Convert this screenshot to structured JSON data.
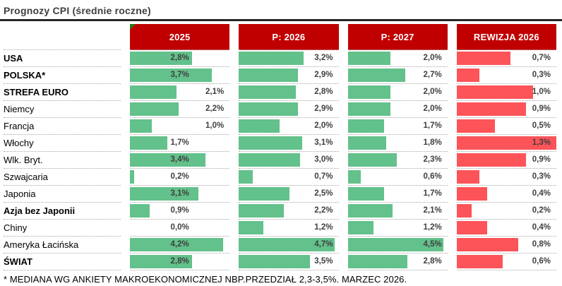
{
  "title": "Prognozy CPI (średnie roczne)",
  "footnote": "* MEDIANA WG ANKIETY MAKROEKONOMICZNEJ NBP.PRZEDZIAŁ 2,3-3,5%. MARZEC 2026.",
  "colors": {
    "header_bg": "#C00000",
    "header_text": "#FFFFFF",
    "green_bar": "#63C18B",
    "red_bar": "#FC5458",
    "title_text": "#3F3F3F",
    "value_text": "#3F3F3F",
    "separator_dotted": "#A6A6A6",
    "title_rule": "#262626",
    "corner_marker": "#1E7D1E"
  },
  "columns": [
    {
      "id": "y2025",
      "label": "2025",
      "bar_color": "green",
      "bar_max": 4.5,
      "corner_marker": true
    },
    {
      "id": "p2026",
      "label": "P: 2026",
      "bar_color": "green",
      "bar_max": 4.9,
      "corner_marker": false
    },
    {
      "id": "p2027",
      "label": "P: 2027",
      "bar_color": "green",
      "bar_max": 4.7,
      "corner_marker": false
    },
    {
      "id": "rev2026",
      "label": "REWIZJA 2026",
      "bar_color": "red",
      "bar_max": 1.3,
      "corner_marker": false
    }
  ],
  "rows": [
    {
      "label": "USA",
      "bold": true,
      "cells": [
        {
          "display": "2,8%",
          "value": 2.8,
          "align": "center"
        },
        {
          "display": "3,2%",
          "value": 3.2,
          "align": "right"
        },
        {
          "display": "2,0%",
          "value": 2.0,
          "align": "right"
        },
        {
          "display": "0,7%",
          "value": 0.7,
          "align": "right"
        }
      ]
    },
    {
      "label": "POLSKA*",
      "bold": true,
      "cells": [
        {
          "display": "3,7%",
          "value": 3.7,
          "align": "center"
        },
        {
          "display": "2,9%",
          "value": 2.9,
          "align": "right"
        },
        {
          "display": "2,7%",
          "value": 2.7,
          "align": "right"
        },
        {
          "display": "0,3%",
          "value": 0.3,
          "align": "right"
        }
      ]
    },
    {
      "label": "STREFA EURO",
      "bold": true,
      "cells": [
        {
          "display": "2,1%",
          "value": 2.1,
          "align": "right"
        },
        {
          "display": "2,8%",
          "value": 2.8,
          "align": "right"
        },
        {
          "display": "2,0%",
          "value": 2.0,
          "align": "right"
        },
        {
          "display": "1,0%",
          "value": 1.0,
          "align": "right"
        }
      ]
    },
    {
      "label": "Niemcy",
      "bold": false,
      "cells": [
        {
          "display": "2,2%",
          "value": 2.2,
          "align": "right"
        },
        {
          "display": "2,9%",
          "value": 2.9,
          "align": "right"
        },
        {
          "display": "2,0%",
          "value": 2.0,
          "align": "right"
        },
        {
          "display": "0,9%",
          "value": 0.9,
          "align": "right"
        }
      ]
    },
    {
      "label": "Francja",
      "bold": false,
      "cells": [
        {
          "display": "1,0%",
          "value": 1.0,
          "align": "right"
        },
        {
          "display": "2,0%",
          "value": 2.0,
          "align": "right"
        },
        {
          "display": "1,7%",
          "value": 1.7,
          "align": "right"
        },
        {
          "display": "0,5%",
          "value": 0.5,
          "align": "right"
        }
      ]
    },
    {
      "label": "Włochy",
      "bold": false,
      "cells": [
        {
          "display": "1,7%",
          "value": 1.7,
          "align": "center"
        },
        {
          "display": "3,1%",
          "value": 3.1,
          "align": "right"
        },
        {
          "display": "1,8%",
          "value": 1.8,
          "align": "right"
        },
        {
          "display": "1,3%",
          "value": 1.3,
          "align": "right"
        }
      ]
    },
    {
      "label": "Wlk. Bryt.",
      "bold": false,
      "cells": [
        {
          "display": "3,4%",
          "value": 3.4,
          "align": "center"
        },
        {
          "display": "3,0%",
          "value": 3.0,
          "align": "right"
        },
        {
          "display": "2,3%",
          "value": 2.3,
          "align": "right"
        },
        {
          "display": "0,9%",
          "value": 0.9,
          "align": "right"
        }
      ]
    },
    {
      "label": "Szwajcaria",
      "bold": false,
      "cells": [
        {
          "display": "0,2%",
          "value": 0.2,
          "align": "center"
        },
        {
          "display": "0,7%",
          "value": 0.7,
          "align": "right"
        },
        {
          "display": "0,6%",
          "value": 0.6,
          "align": "right"
        },
        {
          "display": "0,3%",
          "value": 0.3,
          "align": "right"
        }
      ]
    },
    {
      "label": "Japonia",
      "bold": false,
      "cells": [
        {
          "display": "3,1%",
          "value": 3.1,
          "align": "center"
        },
        {
          "display": "2,5%",
          "value": 2.5,
          "align": "right"
        },
        {
          "display": "1,7%",
          "value": 1.7,
          "align": "right"
        },
        {
          "display": "0,4%",
          "value": 0.4,
          "align": "right"
        }
      ]
    },
    {
      "label": "Azja bez Japonii",
      "bold": true,
      "cells": [
        {
          "display": "0,9%",
          "value": 0.9,
          "align": "center"
        },
        {
          "display": "2,2%",
          "value": 2.2,
          "align": "right"
        },
        {
          "display": "2,1%",
          "value": 2.1,
          "align": "right"
        },
        {
          "display": "0,2%",
          "value": 0.2,
          "align": "right"
        }
      ]
    },
    {
      "label": "Chiny",
      "bold": false,
      "cells": [
        {
          "display": "0,0%",
          "value": 0.0,
          "align": "center"
        },
        {
          "display": "1,2%",
          "value": 1.2,
          "align": "right"
        },
        {
          "display": "1,2%",
          "value": 1.2,
          "align": "right"
        },
        {
          "display": "0,4%",
          "value": 0.4,
          "align": "right"
        }
      ]
    },
    {
      "label": "Ameryka Łacińska",
      "bold": false,
      "cells": [
        {
          "display": "4,2%",
          "value": 4.2,
          "align": "center"
        },
        {
          "display": "4,7%",
          "value": 4.7,
          "align": "right"
        },
        {
          "display": "4,5%",
          "value": 4.5,
          "align": "right"
        },
        {
          "display": "0,8%",
          "value": 0.8,
          "align": "right"
        }
      ]
    },
    {
      "label": "ŚWIAT",
      "bold": true,
      "cells": [
        {
          "display": "2,8%",
          "value": 2.8,
          "align": "center"
        },
        {
          "display": "3,5%",
          "value": 3.5,
          "align": "right"
        },
        {
          "display": "2,8%",
          "value": 2.8,
          "align": "right"
        },
        {
          "display": "0,6%",
          "value": 0.6,
          "align": "right"
        }
      ]
    }
  ],
  "chart_data": {
    "type": "bar",
    "orientation": "horizontal",
    "title": "Prognozy CPI (średnie roczne)",
    "categories": [
      "USA",
      "POLSKA*",
      "STREFA EURO",
      "Niemcy",
      "Francja",
      "Włochy",
      "Wlk. Bryt.",
      "Szwajcaria",
      "Japonia",
      "Azja bez Japonii",
      "Chiny",
      "Ameryka Łacińska",
      "ŚWIAT"
    ],
    "series": [
      {
        "name": "2025",
        "color": "#63C18B",
        "values": [
          2.8,
          3.7,
          2.1,
          2.2,
          1.0,
          1.7,
          3.4,
          0.2,
          3.1,
          0.9,
          0.0,
          4.2,
          2.8
        ]
      },
      {
        "name": "P: 2026",
        "color": "#63C18B",
        "values": [
          3.2,
          2.9,
          2.8,
          2.9,
          2.0,
          3.1,
          3.0,
          0.7,
          2.5,
          2.2,
          1.2,
          4.7,
          3.5
        ]
      },
      {
        "name": "P: 2027",
        "color": "#63C18B",
        "values": [
          2.0,
          2.7,
          2.0,
          2.0,
          1.7,
          1.8,
          2.3,
          0.6,
          1.7,
          2.1,
          1.2,
          4.5,
          2.8
        ]
      },
      {
        "name": "REWIZJA 2026",
        "color": "#FC5458",
        "values": [
          0.7,
          0.3,
          1.0,
          0.9,
          0.5,
          1.3,
          0.9,
          0.3,
          0.4,
          0.2,
          0.4,
          0.8,
          0.6
        ]
      }
    ],
    "value_suffix": "%",
    "decimal_separator": ",",
    "xlim_per_series": {
      "2025": [
        0,
        4.5
      ],
      "P: 2026": [
        0,
        4.9
      ],
      "P: 2027": [
        0,
        4.7
      ],
      "REWIZJA 2026": [
        0,
        1.3
      ]
    },
    "grid": "dotted row separators",
    "legend_position": "column headers",
    "footnote": "* MEDIANA WG ANKIETY MAKROEKONOMICZNEJ NBP.PRZEDZIAŁ 2,3-3,5%. MARZEC 2026."
  }
}
